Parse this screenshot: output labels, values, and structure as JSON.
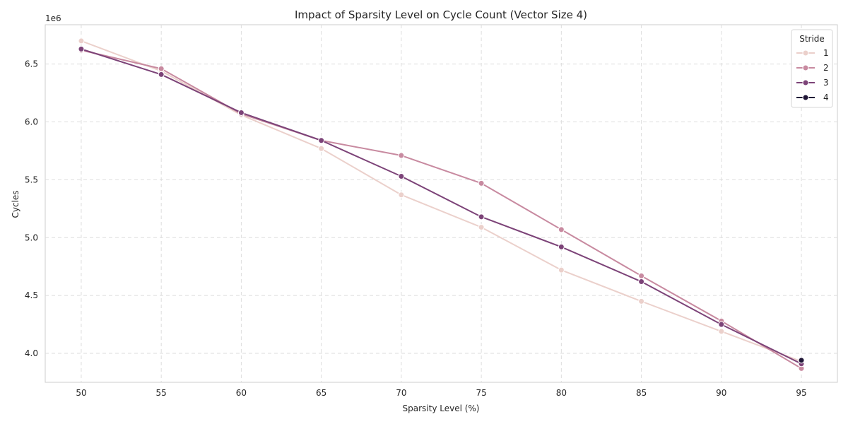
{
  "chart_data": {
    "type": "line",
    "title": "Impact of Sparsity Level on Cycle Count (Vector Size 4)",
    "xlabel": "Sparsity Level (%)",
    "ylabel": "Cycles",
    "y_offset_label": "1e6",
    "x_ticks": [
      50,
      55,
      60,
      65,
      70,
      75,
      80,
      85,
      90,
      95
    ],
    "y_ticks": [
      4.0,
      4.5,
      5.0,
      5.5,
      6.0,
      6.5
    ],
    "y_tick_labels": [
      "4.0",
      "4.5",
      "5.0",
      "5.5",
      "6.0",
      "6.5"
    ],
    "xlim": [
      47.75,
      97.25
    ],
    "ylim": [
      3.75,
      6.84
    ],
    "y_scale_note": "values in units of 1e6 cycles",
    "grid": true,
    "legend_title": "Stride",
    "legend_position": "top-right",
    "series": [
      {
        "name": "1",
        "color": "#ebd0cb",
        "x": [
          50,
          55,
          60,
          65,
          70,
          75,
          80,
          85,
          90,
          95
        ],
        "values": [
          6.7,
          6.44,
          6.06,
          5.77,
          5.37,
          5.09,
          4.72,
          4.45,
          4.19,
          3.93
        ]
      },
      {
        "name": "2",
        "color": "#c88aa0",
        "x": [
          50,
          55,
          60,
          65,
          70,
          75,
          80,
          85,
          90,
          95
        ],
        "values": [
          6.62,
          6.46,
          6.07,
          5.84,
          5.71,
          5.47,
          5.07,
          4.67,
          4.28,
          3.87
        ]
      },
      {
        "name": "3",
        "color": "#7c4378",
        "x": [
          50,
          55,
          60,
          65,
          70,
          75,
          80,
          85,
          90,
          95
        ],
        "values": [
          6.63,
          6.41,
          6.08,
          5.84,
          5.53,
          5.18,
          4.92,
          4.62,
          4.25,
          3.91
        ]
      },
      {
        "name": "4",
        "color": "#1f1536",
        "x": [
          95
        ],
        "values": [
          3.94
        ]
      }
    ]
  }
}
